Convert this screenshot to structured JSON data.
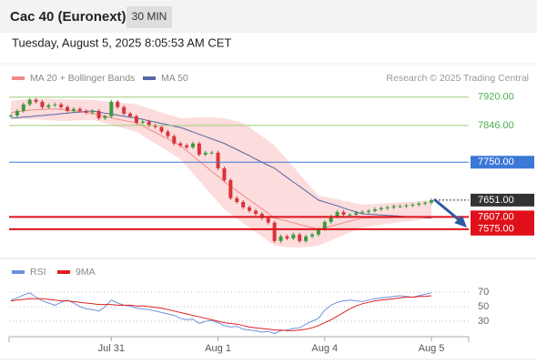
{
  "header": {
    "title": "Cac 40 (Euronext)",
    "interval": "30 MIN",
    "timestamp": "Tuesday, August 5, 2025 8:05:53 AM CET",
    "credit": "Research © 2025 Trading Central"
  },
  "chart_data": [
    {
      "type": "candlestick",
      "up_color": "#3d9a3d",
      "down_color": "#d9343a",
      "close": [
        7872,
        7884,
        7901,
        7913,
        7908,
        7894,
        7899,
        7901,
        7894,
        7884,
        7889,
        7884,
        7880,
        7884,
        7865,
        7870,
        7908,
        7894,
        7877,
        7870,
        7853,
        7856,
        7846,
        7842,
        7830,
        7818,
        7799,
        7794,
        7789,
        7799,
        7770,
        7775,
        7775,
        7734,
        7703,
        7656,
        7646,
        7632,
        7623,
        7615,
        7604,
        7592,
        7544,
        7556,
        7551,
        7561,
        7544,
        7556,
        7561,
        7575,
        7594,
        7608,
        7620,
        7613,
        7613,
        7618,
        7620,
        7623,
        7627,
        7630,
        7632,
        7635,
        7635,
        7637,
        7639,
        7642,
        7644,
        7651
      ],
      "series": [
        {
          "name": "MA 20 + Bollinger Bands",
          "color": "#f08a8a",
          "band_color": "#fbd6d6",
          "values": [
            7880,
            7882,
            7884,
            7886,
            7887,
            7888,
            7889,
            7889,
            7888,
            7886,
            7884,
            7882,
            7880,
            7877,
            7874,
            7870,
            7866,
            7862,
            7859,
            7856,
            7853,
            7845,
            7836,
            7828,
            7819,
            7811,
            7802,
            7794,
            7780,
            7767,
            7753,
            7740,
            7726,
            7713,
            7699,
            7687,
            7675,
            7663,
            7651,
            7640,
            7628,
            7616,
            7604,
            7600,
            7596,
            7592,
            7587,
            7583,
            7579,
            7575,
            7579,
            7583,
            7587,
            7592,
            7596,
            7600,
            7604,
            7604,
            7605,
            7605,
            7605,
            7606,
            7606,
            7606,
            7607,
            7607,
            7607,
            7608
          ],
          "upper": [
            7910,
            7912,
            7914,
            7915,
            7916,
            7916,
            7916,
            7915,
            7915,
            7914,
            7914,
            7913,
            7913,
            7913,
            7911,
            7909,
            7908,
            7906,
            7904,
            7903,
            7901,
            7896,
            7891,
            7886,
            7880,
            7875,
            7870,
            7865,
            7865,
            7866,
            7867,
            7868,
            7868,
            7866,
            7865,
            7861,
            7857,
            7853,
            7841,
            7829,
            7818,
            7806,
            7794,
            7775,
            7757,
            7738,
            7719,
            7700,
            7682,
            7663,
            7660,
            7656,
            7653,
            7649,
            7646,
            7642,
            7639,
            7640,
            7641,
            7642,
            7643,
            7644,
            7645,
            7646,
            7647,
            7648,
            7649,
            7651
          ],
          "lower": [
            7865,
            7864,
            7863,
            7862,
            7862,
            7861,
            7860,
            7859,
            7858,
            7858,
            7859,
            7860,
            7860,
            7861,
            7857,
            7852,
            7848,
            7843,
            7839,
            7834,
            7830,
            7820,
            7809,
            7799,
            7789,
            7779,
            7768,
            7758,
            7739,
            7721,
            7702,
            7683,
            7664,
            7646,
            7627,
            7615,
            7603,
            7591,
            7580,
            7568,
            7556,
            7544,
            7532,
            7530,
            7528,
            7527,
            7527,
            7528,
            7530,
            7532,
            7539,
            7546,
            7553,
            7559,
            7566,
            7573,
            7580,
            7582,
            7584,
            7587,
            7589,
            7591,
            7593,
            7595,
            7597,
            7599,
            7602,
            7604
          ]
        },
        {
          "name": "MA 50",
          "color": "#5567a3",
          "values": [
            7865,
            7866,
            7868,
            7869,
            7871,
            7872,
            7874,
            7875,
            7877,
            7878,
            7880,
            7881,
            7883,
            7884,
            7881,
            7878,
            7876,
            7873,
            7870,
            7868,
            7865,
            7862,
            7858,
            7855,
            7851,
            7848,
            7844,
            7841,
            7835,
            7829,
            7823,
            7817,
            7811,
            7805,
            7799,
            7791,
            7783,
            7775,
            7767,
            7758,
            7750,
            7742,
            7734,
            7722,
            7710,
            7698,
            7687,
            7675,
            7663,
            7651,
            7646,
            7641,
            7636,
            7630,
            7625,
            7620,
            7615,
            7614,
            7613,
            7612,
            7611,
            7610,
            7609,
            7608,
            7607,
            7606,
            7605,
            7604
          ]
        }
      ],
      "ylim": [
        7508,
        7948
      ],
      "levels": [
        {
          "value": 7920,
          "label": "7920.00",
          "color": "#9ccc7a",
          "text_color": "#4caf50",
          "style": "text"
        },
        {
          "value": 7846,
          "label": "7846.00",
          "color": "#9ccc7a",
          "text_color": "#4caf50",
          "style": "text"
        },
        {
          "value": 7750,
          "label": "7750.00",
          "color": "#3c78d8",
          "text_color": "#ffffff",
          "style": "box"
        },
        {
          "value": 7651,
          "label": "7651.00",
          "color": "#333333",
          "text_color": "#ffffff",
          "style": "last"
        },
        {
          "value": 7607,
          "label": "7607.00",
          "color": "#e0101a",
          "text_color": "#ffffff",
          "style": "box"
        },
        {
          "value": 7575,
          "label": "7575.00",
          "color": "#e0101a",
          "text_color": "#ffffff",
          "style": "box"
        }
      ]
    },
    {
      "type": "line",
      "categories": [
        null,
        null,
        null,
        null,
        null,
        null,
        null,
        null,
        null,
        null,
        null,
        null,
        null,
        null,
        null,
        null,
        "Jul 31",
        null,
        null,
        null,
        null,
        null,
        null,
        null,
        null,
        null,
        null,
        null,
        null,
        null,
        null,
        null,
        null,
        "Aug 1",
        null,
        null,
        null,
        null,
        null,
        null,
        null,
        null,
        null,
        null,
        null,
        null,
        null,
        null,
        null,
        null,
        "Aug 4",
        null,
        null,
        null,
        null,
        null,
        null,
        null,
        null,
        null,
        null,
        null,
        null,
        null,
        null,
        null,
        null,
        "Aug 5"
      ],
      "series": [
        {
          "name": "RSI",
          "color": "#6d8fe0",
          "values": [
            59,
            62,
            66,
            69,
            63,
            58,
            55,
            52,
            56,
            59,
            55,
            50,
            47,
            46,
            44,
            50,
            59,
            55,
            52,
            51,
            48,
            47,
            46,
            44,
            42,
            40,
            38,
            34,
            32,
            33,
            27,
            30,
            31,
            28,
            24,
            22,
            23,
            19,
            18,
            17,
            15,
            16,
            13,
            17,
            18,
            20,
            21,
            26,
            30,
            34,
            45,
            52,
            56,
            58,
            59,
            58,
            57,
            59,
            61,
            62,
            63,
            64,
            65,
            64,
            63,
            65,
            67,
            69
          ]
        },
        {
          "name": "9MA",
          "color": "#e02020",
          "values": [
            58,
            59,
            60,
            61,
            61,
            61,
            60,
            59,
            58,
            58,
            57,
            56,
            55,
            54,
            53,
            53,
            53,
            52,
            52,
            52,
            51,
            51,
            50,
            49,
            48,
            46,
            44,
            42,
            40,
            38,
            36,
            34,
            32,
            30,
            28,
            27,
            26,
            24,
            22,
            21,
            20,
            19,
            18,
            18,
            17,
            17,
            18,
            19,
            21,
            24,
            28,
            32,
            37,
            42,
            47,
            51,
            54,
            56,
            58,
            59,
            60,
            61,
            62,
            63,
            63,
            64,
            64,
            65
          ]
        }
      ],
      "ylim": [
        10,
        90
      ],
      "yticks": [
        70,
        50,
        30
      ],
      "grid": true
    }
  ]
}
